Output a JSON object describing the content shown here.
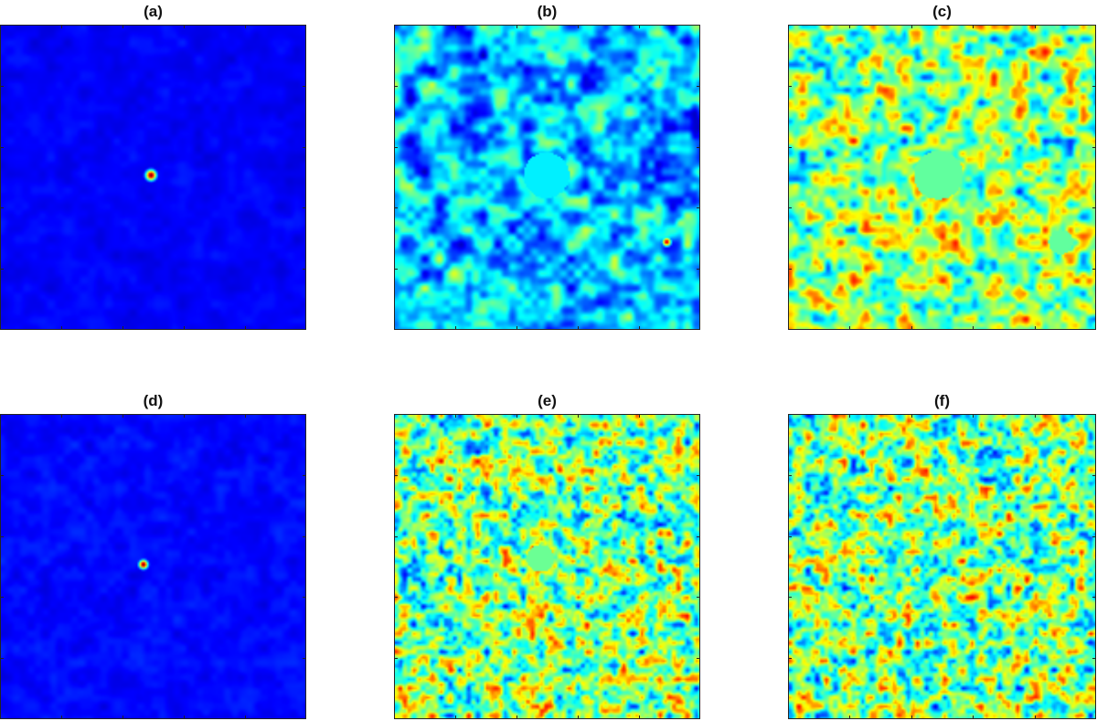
{
  "panels": [
    {
      "id": "a",
      "title": "(a)",
      "map": "a"
    },
    {
      "id": "b",
      "title": "(b)",
      "map": "b"
    },
    {
      "id": "c",
      "title": "(c)",
      "map": "c"
    },
    {
      "id": "d",
      "title": "(d)",
      "map": "d"
    },
    {
      "id": "e",
      "title": "(e)",
      "map": "e"
    },
    {
      "id": "f",
      "title": "(f)",
      "map": "f"
    }
  ],
  "colormap": "jet"
}
